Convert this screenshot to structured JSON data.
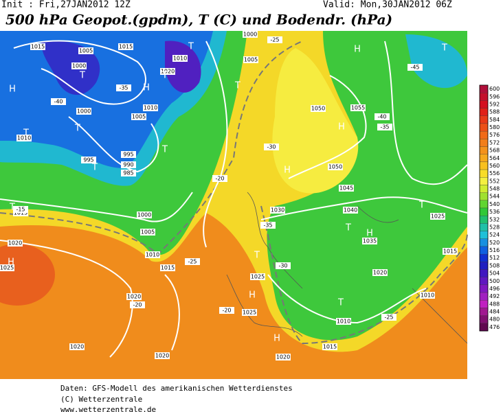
{
  "header": {
    "init": "Init : Fri,27JAN2012 12Z",
    "valid": "Valid: Mon,30JAN2012 06Z",
    "title": "500 hPa Geopot.(gpdm), T (C) und Bodendr. (hPa)"
  },
  "map_labels": [
    "1015",
    "1005",
    "1000",
    "1015",
    "1020",
    "1010",
    "1000",
    "1005",
    "1010",
    "995",
    "995",
    "990",
    "985",
    "1000",
    "1005",
    "1010",
    "1015",
    "1020",
    "1020",
    "1020",
    "1020",
    "1025",
    "1025",
    "1025",
    "1020",
    "1015",
    "1010",
    "1020",
    "1030",
    "1035",
    "1040",
    "1045",
    "1050",
    "1050",
    "1055",
    "1025",
    "1015",
    "1010",
    "1005",
    "1000",
    "1015",
    "1010",
    "-40",
    "-35",
    "-30",
    "-25",
    "-20",
    "-15",
    "-25",
    "-20",
    "-20",
    "-25",
    "-45",
    "-35",
    "-40",
    "-30",
    "-35"
  ],
  "centers": [
    "H",
    "H",
    "H",
    "H",
    "H",
    "H",
    "H",
    "H",
    "H",
    "T",
    "T",
    "T",
    "T",
    "T",
    "T",
    "T",
    "T",
    "T",
    "T",
    "T",
    "T",
    "T",
    "T"
  ],
  "colorbar": {
    "ticks": [
      600,
      596,
      592,
      588,
      584,
      580,
      576,
      572,
      568,
      564,
      560,
      556,
      552,
      548,
      544,
      540,
      536,
      532,
      528,
      524,
      520,
      516,
      512,
      508,
      504,
      500,
      496,
      492,
      488,
      484,
      480,
      476
    ],
    "colors": [
      "#b0103a",
      "#c4102c",
      "#d41020",
      "#e02018",
      "#e83a18",
      "#ec5018",
      "#f06a18",
      "#f27e1a",
      "#f4921c",
      "#f6a81e",
      "#f8c020",
      "#f8dc28",
      "#f4f040",
      "#d0ec30",
      "#a0e030",
      "#60d430",
      "#30c838",
      "#20c070",
      "#20c0a8",
      "#20c0d8",
      "#1890e0",
      "#1060e0",
      "#1030d0",
      "#2020c0",
      "#4018c0",
      "#6018c0",
      "#8018c0",
      "#a020c0",
      "#c020c0",
      "#a01890",
      "#801070",
      "#600850"
    ]
  },
  "footer": [
    "Daten: GFS-Modell des amerikanischen Wetterdienstes",
    "(C) Wetterzentrale",
    "www.wetterzentrale.de"
  ]
}
